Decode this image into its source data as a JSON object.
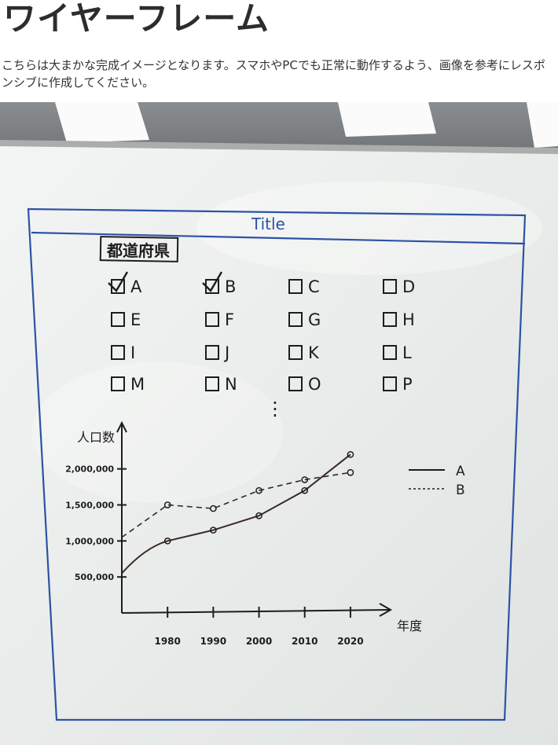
{
  "page": {
    "title": "ワイヤーフレーム",
    "description": "こちらは大まかな完成イメージとなります。スマホやPCでも正常に動作するよう、画像を参考にレスポンシブに作成してください。"
  },
  "whiteboard": {
    "frame_title": "Title",
    "section_label": "都道府県",
    "checkboxes": [
      {
        "label": "A",
        "checked": true
      },
      {
        "label": "B",
        "checked": true
      },
      {
        "label": "C",
        "checked": false
      },
      {
        "label": "D",
        "checked": false
      },
      {
        "label": "E",
        "checked": false
      },
      {
        "label": "F",
        "checked": false
      },
      {
        "label": "G",
        "checked": false
      },
      {
        "label": "H",
        "checked": false
      },
      {
        "label": "I",
        "checked": false
      },
      {
        "label": "J",
        "checked": false
      },
      {
        "label": "K",
        "checked": false
      },
      {
        "label": "L",
        "checked": false
      },
      {
        "label": "M",
        "checked": false
      },
      {
        "label": "N",
        "checked": false
      },
      {
        "label": "O",
        "checked": false
      },
      {
        "label": "P",
        "checked": false
      }
    ],
    "ellipsis": "⋮"
  },
  "chart_data": {
    "type": "line",
    "ylabel": "人口数",
    "xlabel": "年度",
    "x": [
      1980,
      1990,
      2000,
      2010,
      2020
    ],
    "x_tick_labels": [
      "1980",
      "1990",
      "2000",
      "2010",
      "2020"
    ],
    "y_tick_labels": [
      "500,000",
      "1,000,000",
      "1,500,000",
      "2,000,000"
    ],
    "y_ticks": [
      500000,
      1000000,
      1500000,
      2000000
    ],
    "ylim": [
      0,
      2400000
    ],
    "xlim": [
      1970,
      2025
    ],
    "legend_position": "right",
    "series": [
      {
        "name": "A",
        "style": "solid",
        "values": [
          1000000,
          1150000,
          1350000,
          1700000,
          2200000
        ],
        "start": {
          "x": 1970,
          "y": 550000
        }
      },
      {
        "name": "B",
        "style": "dashed",
        "values": [
          1500000,
          1450000,
          1700000,
          1850000,
          1950000
        ],
        "start": {
          "x": 1970,
          "y": 1050000
        }
      }
    ]
  }
}
